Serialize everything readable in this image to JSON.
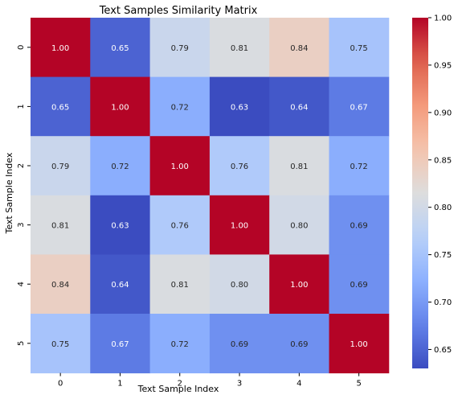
{
  "chart_data": {
    "type": "heatmap",
    "title": "Text Samples Similarity Matrix",
    "xlabel": "Text Sample Index",
    "ylabel": "Text Sample Index",
    "x_categories": [
      "0",
      "1",
      "2",
      "3",
      "4",
      "5"
    ],
    "y_categories": [
      "0",
      "1",
      "2",
      "3",
      "4",
      "5"
    ],
    "values": [
      [
        1.0,
        0.65,
        0.79,
        0.81,
        0.84,
        0.75
      ],
      [
        0.65,
        1.0,
        0.72,
        0.63,
        0.64,
        0.67
      ],
      [
        0.79,
        0.72,
        1.0,
        0.76,
        0.81,
        0.72
      ],
      [
        0.81,
        0.63,
        0.76,
        1.0,
        0.8,
        0.69
      ],
      [
        0.84,
        0.64,
        0.81,
        0.8,
        1.0,
        0.69
      ],
      [
        0.75,
        0.67,
        0.72,
        0.69,
        0.69,
        1.0
      ]
    ],
    "colormap": "coolwarm",
    "colorbar": {
      "vmin": 0.63,
      "vmax": 1.0,
      "ticks": [
        "0.65",
        "0.70",
        "0.75",
        "0.80",
        "0.85",
        "0.90",
        "0.95",
        "1.00"
      ]
    },
    "annotation_format": "2 decimals"
  }
}
